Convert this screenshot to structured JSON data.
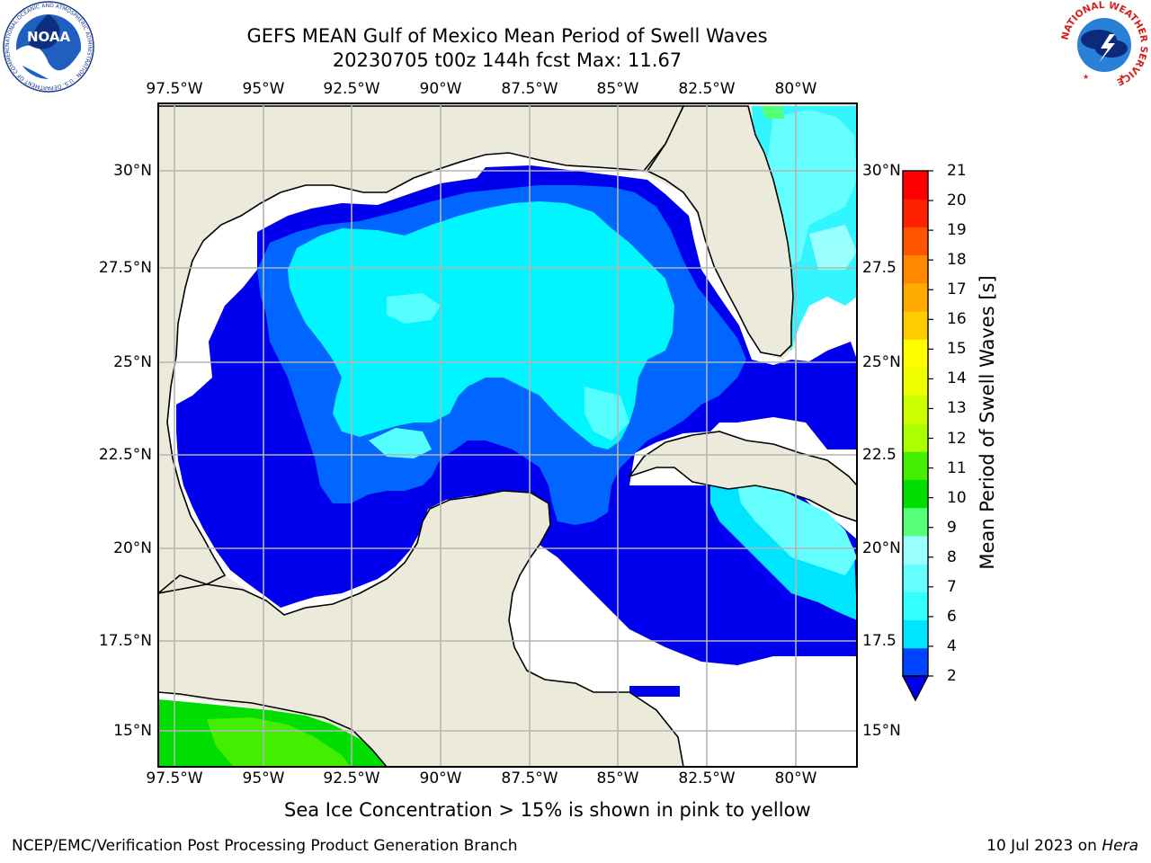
{
  "title": {
    "line1": "GEFS MEAN Gulf of Mexico Mean Period of Swell Waves",
    "line2": "20230705 t00z 144h fcst   Max: 11.67"
  },
  "map": {
    "lon_ticks": [
      "97.5°W",
      "95°W",
      "92.5°W",
      "90°W",
      "87.5°W",
      "85°W",
      "82.5°W",
      "80°W"
    ],
    "lat_ticks_left": [
      "30°N",
      "27.5°N",
      "25°N",
      "22.5°N",
      "20°N",
      "17.5°N",
      "15°N"
    ],
    "lat_ticks_right": [
      "30°N",
      "27.5",
      "25°N",
      "22.5",
      "20°N",
      "17.5",
      "15°N"
    ],
    "colors": {
      "land": "#ecebdb",
      "ocean_nodata": "#ffffff",
      "grid": "#b4b4b4",
      "coast": "#000000"
    }
  },
  "colorbar": {
    "title": "Mean Period of Swell Waves [s]",
    "ticks": [
      "2",
      "4",
      "6",
      "7",
      "8",
      "9",
      "10",
      "11",
      "12",
      "13",
      "14",
      "15",
      "16",
      "17",
      "18",
      "19",
      "20",
      "21"
    ],
    "colors": [
      "#0044ff",
      "#00e5ff",
      "#33ffff",
      "#66ffff",
      "#99ffff",
      "#55ff77",
      "#00dd00",
      "#44ee00",
      "#aaff00",
      "#ccff00",
      "#eeff00",
      "#ffff00",
      "#ffcc00",
      "#ffaa00",
      "#ff8800",
      "#ff5500",
      "#ff2200",
      "#ff0000"
    ],
    "extend_color": "#0000ee"
  },
  "note": "Sea Ice Concentration > 15% is shown in pink to yellow",
  "footer": {
    "left": "NCEP/EMC/Verification Post Processing Product Generation Branch",
    "right_prefix": "10 Jul 2023 on ",
    "right_host": "Hera"
  },
  "logos": {
    "left": "noaa-logo",
    "left_ring_text": "NATIONAL OCEANIC AND ATMOSPHERIC ADMINISTRATION · U.S. DEPARTMENT OF COMMERCE",
    "left_center": "NOAA",
    "right": "nws-logo",
    "right_ring_text": "NATIONAL WEATHER SERVICE"
  }
}
